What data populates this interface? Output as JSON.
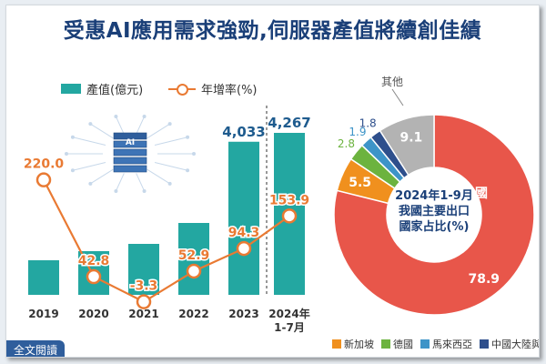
{
  "title": "受惠AI應用需求強勁,伺服器產值將續創佳績",
  "legend": {
    "bar_label": "產值(億元)",
    "line_label": "年增率(%)"
  },
  "read_full_label": "全文閱讀",
  "colors": {
    "bar": "#23a7a1",
    "line": "#e97a33",
    "title": "#1a3f78"
  },
  "chart_data": [
    {
      "type": "bar",
      "categories": [
        "2019",
        "2020",
        "2021",
        "2022",
        "2023",
        "2024年\n1-7月"
      ],
      "series": [
        {
          "name": "產值(億元)",
          "values": [
            null,
            null,
            null,
            null,
            4033,
            4267
          ],
          "value_labels": [
            "",
            "",
            "",
            "",
            "4,033",
            "4,267"
          ]
        },
        {
          "name": "年增率(%)",
          "type": "line",
          "values": [
            220.0,
            42.8,
            -3.3,
            52.9,
            94.3,
            153.9
          ],
          "value_labels": [
            "220.0",
            "42.8",
            "-3.3",
            "52.9",
            "94.3",
            "153.9"
          ]
        }
      ]
    },
    {
      "type": "pie",
      "title": "2024年1-9月\n我國主要出口\n國家占比(%)",
      "slices": [
        {
          "label": "美國",
          "value": 78.9,
          "value_label": "78.9",
          "color": "#e8564a"
        },
        {
          "label": "新加坡",
          "value": 5.5,
          "value_label": "5.5",
          "color": "#f0901e"
        },
        {
          "label": "德國",
          "value": 2.8,
          "value_label": "2.8",
          "color": "#6cb33f"
        },
        {
          "label": "馬來西亞",
          "value": 1.9,
          "value_label": "1.9",
          "color": "#3d94c8"
        },
        {
          "label": "中國大陸與香港",
          "value": 1.8,
          "value_label": "1.8",
          "color": "#2e4f8c"
        },
        {
          "label": "其他",
          "value": 9.1,
          "value_label": "9.1",
          "color": "#b3b3b3"
        }
      ]
    }
  ]
}
